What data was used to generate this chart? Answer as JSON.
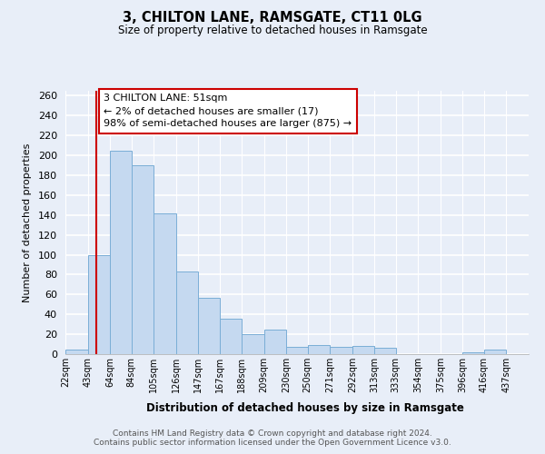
{
  "title": "3, CHILTON LANE, RAMSGATE, CT11 0LG",
  "subtitle": "Size of property relative to detached houses in Ramsgate",
  "xlabel": "Distribution of detached houses by size in Ramsgate",
  "ylabel": "Number of detached properties",
  "bar_color": "#c5d9f0",
  "bar_edge_color": "#7aaed6",
  "background_color": "#e8eef8",
  "plot_bg_color": "#ffffff",
  "grid_color": "#d0dae8",
  "ref_line_color": "#cc0000",
  "ref_line_x": 51,
  "categories": [
    "22sqm",
    "43sqm",
    "64sqm",
    "84sqm",
    "105sqm",
    "126sqm",
    "147sqm",
    "167sqm",
    "188sqm",
    "209sqm",
    "230sqm",
    "250sqm",
    "271sqm",
    "292sqm",
    "313sqm",
    "333sqm",
    "354sqm",
    "375sqm",
    "396sqm",
    "416sqm",
    "437sqm"
  ],
  "bar_lefts": [
    22,
    43,
    64,
    84,
    105,
    126,
    147,
    167,
    188,
    209,
    230,
    250,
    271,
    292,
    313,
    333,
    354,
    375,
    396,
    416
  ],
  "bar_heights": [
    5,
    100,
    205,
    190,
    142,
    83,
    57,
    36,
    20,
    25,
    7,
    9,
    7,
    8,
    6,
    0,
    0,
    0,
    2,
    5
  ],
  "bar_widths": [
    21,
    21,
    20,
    21,
    21,
    21,
    20,
    21,
    21,
    21,
    20,
    21,
    21,
    21,
    20,
    21,
    21,
    21,
    20,
    21
  ],
  "ylim": [
    0,
    265
  ],
  "yticks": [
    0,
    20,
    40,
    60,
    80,
    100,
    120,
    140,
    160,
    180,
    200,
    220,
    240,
    260
  ],
  "annotation_title": "3 CHILTON LANE: 51sqm",
  "annotation_line1": "← 2% of detached houses are smaller (17)",
  "annotation_line2": "98% of semi-detached houses are larger (875) →",
  "annotation_box_color": "white",
  "annotation_box_edge_color": "#cc0000",
  "footer_line1": "Contains HM Land Registry data © Crown copyright and database right 2024.",
  "footer_line2": "Contains public sector information licensed under the Open Government Licence v3.0."
}
